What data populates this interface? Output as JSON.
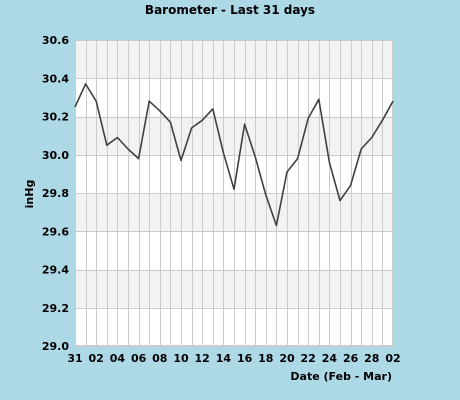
{
  "colors": {
    "background": "#add8e6",
    "plot_background": "#ffffff",
    "band": "#f2f2f2",
    "grid": "#cccccc",
    "line": "#404040"
  },
  "chart_data": {
    "type": "line",
    "title": "Barometer - Last 31 days",
    "xlabel": "Date (Feb - Mar)",
    "ylabel": "inHg",
    "ylim": [
      29.0,
      30.6
    ],
    "yticks": [
      "29.0",
      "29.2",
      "29.4",
      "29.6",
      "29.8",
      "30.0",
      "30.2",
      "30.4",
      "30.6"
    ],
    "xticks": [
      "31",
      "02",
      "04",
      "06",
      "08",
      "10",
      "12",
      "14",
      "16",
      "18",
      "20",
      "22",
      "24",
      "26",
      "28",
      "02"
    ],
    "grid": true,
    "legend": "none",
    "series": [
      {
        "values": [
          30.25,
          30.37,
          30.28,
          30.05,
          30.09,
          30.03,
          29.98,
          30.28,
          30.23,
          30.17,
          29.97,
          30.14,
          30.18,
          30.24,
          30.01,
          29.82,
          30.16,
          29.99,
          29.79,
          29.63,
          29.91,
          29.98,
          30.19,
          30.29,
          29.96,
          29.76,
          29.84,
          30.03,
          30.09,
          30.18,
          30.28
        ]
      }
    ]
  }
}
